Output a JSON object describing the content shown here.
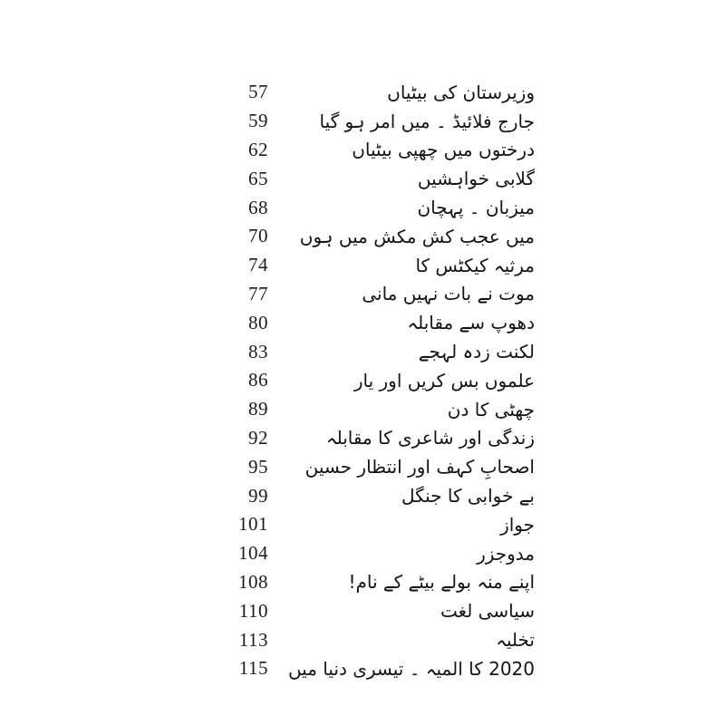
{
  "page": {
    "background_color": "#ffffff",
    "text_color": "#141414",
    "language": "Urdu",
    "kind": "book-table-of-contents"
  },
  "toc": {
    "entries": [
      {
        "title": "وزیرستان کی بیٹیاں",
        "page_no": "57"
      },
      {
        "title": "جارج فلائیڈ ۔ میں امر ہو گیا",
        "page_no": "59"
      },
      {
        "title": "درختوں میں چھپی بیٹیاں",
        "page_no": "62"
      },
      {
        "title": "گلابی خواہشیں",
        "page_no": "65"
      },
      {
        "title": "میزبان ۔ پہچان",
        "page_no": "68"
      },
      {
        "title": "میں عجب کش مکش میں ہوں",
        "page_no": "70"
      },
      {
        "title": "مرثیہ کیکٹس کا",
        "page_no": "74"
      },
      {
        "title": "موت نے بات نہیں مانی",
        "page_no": "77"
      },
      {
        "title": "دھوپ سے مقابلہ",
        "page_no": "80"
      },
      {
        "title": "لکنت زدہ لہجے",
        "page_no": "83"
      },
      {
        "title": "علموں بس کریں اور یار",
        "page_no": "86"
      },
      {
        "title": "چھٹی کا دن",
        "page_no": "89"
      },
      {
        "title": "زندگی اور شاعری کا مقابلہ",
        "page_no": "92"
      },
      {
        "title": "اصحابِ کہف اور انتظار حسین",
        "page_no": "95"
      },
      {
        "title": "بے خوابی کا جنگل",
        "page_no": "99"
      },
      {
        "title": "جواز",
        "page_no": "101"
      },
      {
        "title": "مدوجزر",
        "page_no": "104"
      },
      {
        "title": "اپنے منہ بولے بیٹے کے نام!",
        "page_no": "108"
      },
      {
        "title": "سیاسی لغت",
        "page_no": "110"
      },
      {
        "title": "تخلیہ",
        "page_no": "113"
      },
      {
        "title": "2020 کا المیہ ۔ تیسری دنیا میں",
        "page_no": "115"
      }
    ]
  }
}
